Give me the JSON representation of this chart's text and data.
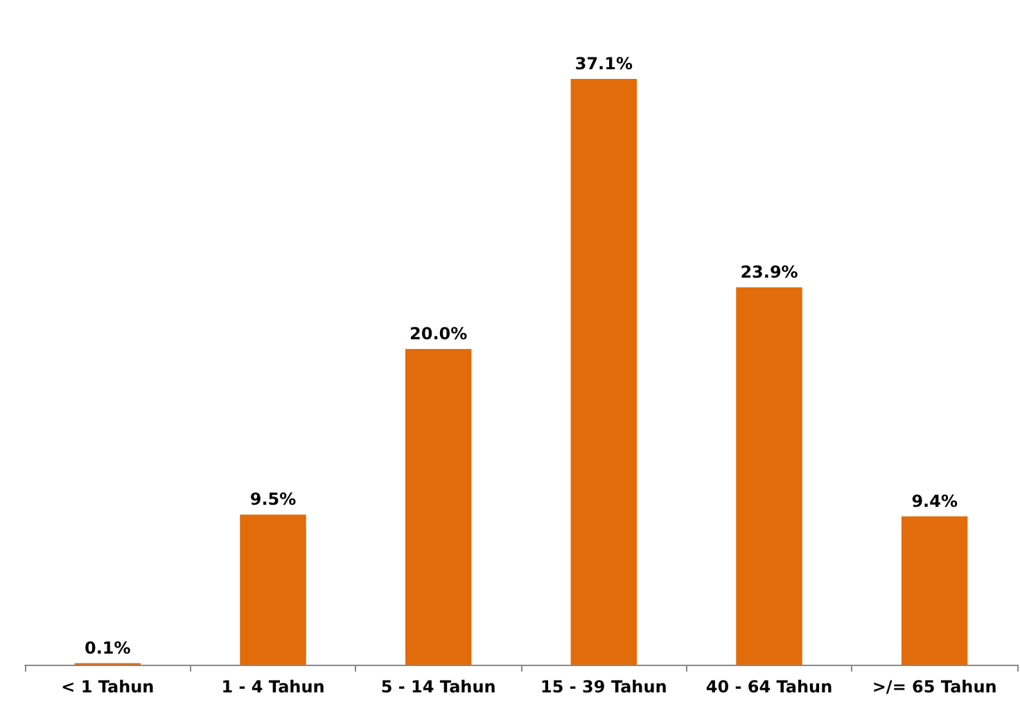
{
  "chart_data": {
    "type": "bar",
    "categories": [
      "< 1 Tahun",
      "1 - 4 Tahun",
      "5 - 14 Tahun",
      "15 - 39 Tahun",
      "40 - 64 Tahun",
      ">/= 65 Tahun"
    ],
    "values": [
      0.1,
      9.5,
      20.0,
      37.1,
      23.9,
      9.4
    ],
    "value_labels": [
      "0.1%",
      "9.5%",
      "20.0%",
      "37.1%",
      "23.9%",
      "9.4%"
    ],
    "color": "#e36c0a",
    "tick_labels": "x"
  }
}
